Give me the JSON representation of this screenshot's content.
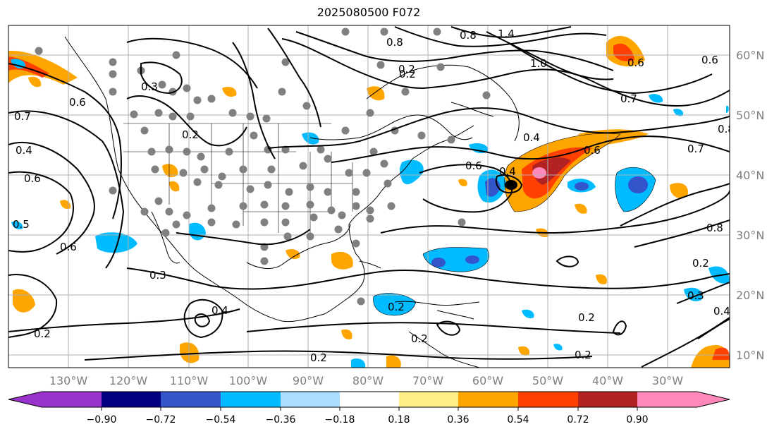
{
  "title": "2025080500 F072",
  "map": {
    "lon_labels": [
      "130°W",
      "120°W",
      "110°W",
      "100°W",
      "90°W",
      "80°W",
      "70°W",
      "60°W",
      "50°W",
      "40°W",
      "30°W"
    ],
    "lat_labels": [
      "60°N",
      "50°N",
      "40°N",
      "30°N",
      "20°N",
      "10°N"
    ],
    "contour_labels": [
      "1.4",
      "1.0",
      "0.8",
      "0.8",
      "0.6",
      "0.6",
      "0.7",
      "0.4",
      "0.6",
      "0.7",
      "0.8",
      "0.2",
      "0.3",
      "0.2",
      "0.7",
      "0.6",
      "0.4",
      "0.6",
      "0.5",
      "0.6",
      "0.3",
      "0.2",
      "0.4",
      "0.2",
      "0.2",
      "0.6",
      "0.8",
      "0.2",
      "0.3",
      "0.4",
      "0.2",
      "0.2",
      "0.2",
      "0.2",
      "0.4"
    ]
  },
  "colorbar": {
    "colors": [
      "#9933cc",
      "#000080",
      "#3355cc",
      "#00bbff",
      "#aaddff",
      "#ffffff",
      "#ffee88",
      "#ffa500",
      "#ff4000",
      "#b22222",
      "#ff88bb"
    ],
    "tick_labels": [
      "−0.90",
      "−0.72",
      "−0.54",
      "−0.36",
      "−0.18",
      "0.18",
      "0.36",
      "0.54",
      "0.72",
      "0.90"
    ]
  }
}
